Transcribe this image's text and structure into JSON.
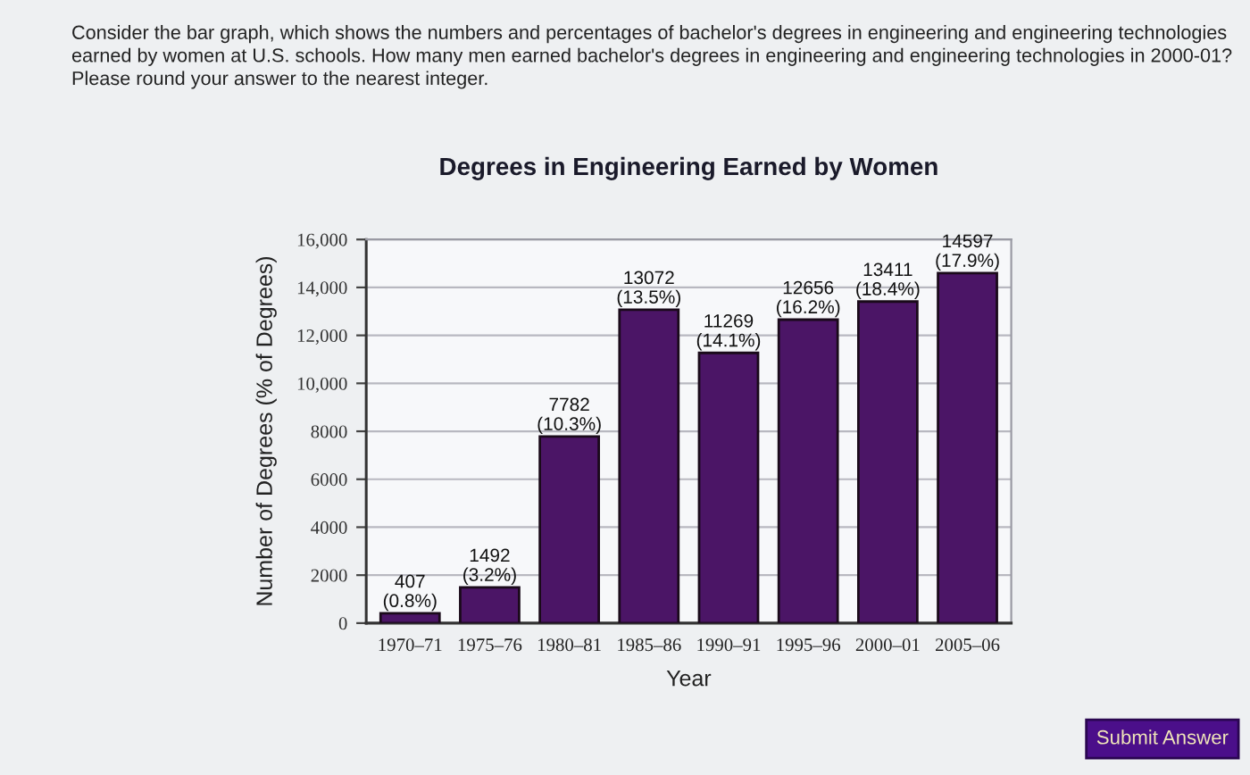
{
  "chart_data": {
    "type": "bar",
    "title": "Degrees in Engineering Earned by Women",
    "xlabel": "Year",
    "ylabel": "Number of Degrees (% of Degrees)",
    "categories": [
      "1970–71",
      "1975–76",
      "1980–81",
      "1985–86",
      "1990–91",
      "1995–96",
      "2000–01",
      "2005–06"
    ],
    "values": [
      407,
      1492,
      7782,
      13072,
      11269,
      12656,
      13411,
      14597
    ],
    "value_labels": [
      "407\n(0.8%)",
      "1492\n(3.2%)",
      "7782\n(10.3%)",
      "13072\n(13.5%)",
      "11269\n(14.1%)",
      "12656\n(16.2%)",
      "13411\n(18.4%)",
      "14597\n(17.9%)"
    ],
    "color": "#4b1566",
    "ylim": [
      0,
      16000
    ],
    "yticks": [
      0,
      2000,
      4000,
      6000,
      8000,
      {
        "value": 10000,
        "label": "10,000"
      },
      {
        "value": 12000,
        "label": "12,000"
      },
      {
        "value": 14000,
        "label": "14,000"
      },
      {
        "value": 16000,
        "label": "16,000"
      }
    ],
    "grid": "y",
    "annotations": [
      "Consider the bar graph, which shows the numbers and percentages of bachelor's degrees in engineering and engineering technologies\nearned by women at U.S. schools. How many men earned bachelor's degrees in engineering and engineering technologies in 2000-01?\nPlease round your answer to the nearest integer.",
      "Submit Answer"
    ]
  }
}
